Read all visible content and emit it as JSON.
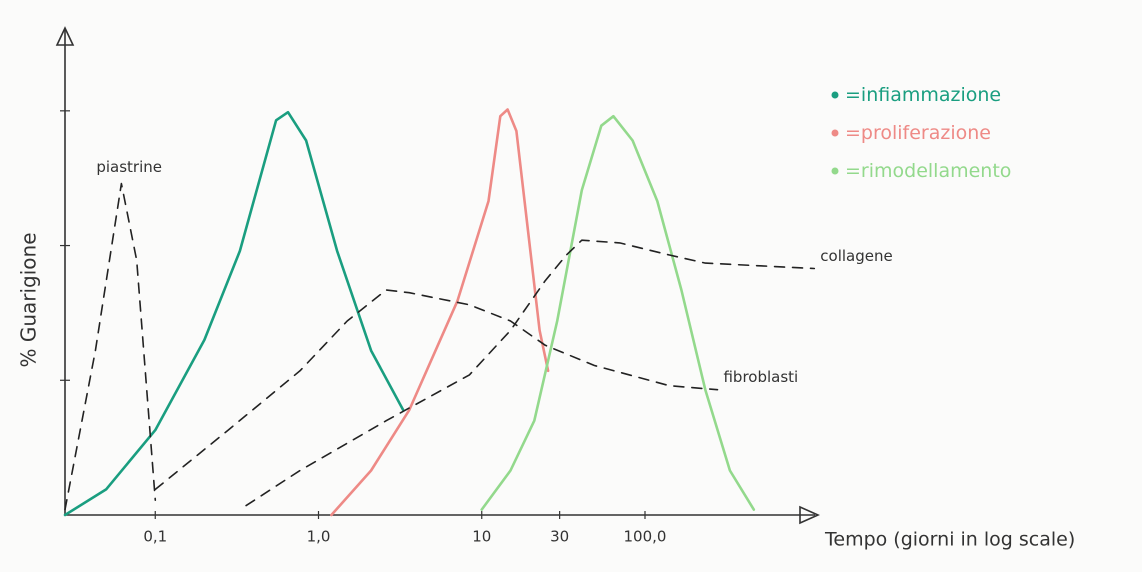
{
  "chart_data": {
    "type": "line",
    "y_label": "% Guarigione",
    "x_label": "Tempo (giorni in log scale)",
    "xscale": "log",
    "xlim": [
      0.028,
      1100
    ],
    "xticks": [
      {
        "value": 0.1,
        "label": "0,1"
      },
      {
        "value": 1,
        "label": "1,0"
      },
      10,
      30,
      {
        "value": 100,
        "label": "100,0"
      }
    ],
    "ylim": [
      0,
      3.6
    ],
    "yticks": [
      1,
      2,
      3
    ],
    "legend_separator": "=",
    "series": [
      {
        "name": "infiammazione",
        "color": "#1a9e80",
        "dashed": false,
        "x": [
          0.028,
          0.05,
          0.1,
          0.2,
          0.33,
          0.55,
          0.65,
          0.84,
          1.3,
          2.1,
          3.3
        ],
        "values": [
          0,
          0.19,
          0.63,
          1.3,
          1.96,
          2.93,
          2.99,
          2.78,
          1.96,
          1.22,
          0.78
        ]
      },
      {
        "name": "proliferazione",
        "color": "#ee8a86",
        "dashed": false,
        "x": [
          1.2,
          2.1,
          3.6,
          7.1,
          11,
          13,
          14.4,
          16.3,
          19.2,
          22.6,
          25.5
        ],
        "values": [
          0,
          0.33,
          0.78,
          1.59,
          2.33,
          2.96,
          3.01,
          2.85,
          2.11,
          1.37,
          1.07
        ]
      },
      {
        "name": "rimodellamento",
        "color": "#93d98c",
        "dashed": false,
        "x": [
          10,
          15,
          21,
          29,
          41,
          54,
          64,
          84,
          119,
          167,
          234,
          331,
          464
        ],
        "values": [
          0.04,
          0.33,
          0.7,
          1.44,
          2.41,
          2.89,
          2.96,
          2.78,
          2.33,
          1.67,
          0.93,
          0.33,
          0.04
        ]
      },
      {
        "name": "piastrine",
        "color": "#222222",
        "dashed": true,
        "x": [
          0.028,
          0.043,
          0.062,
          0.077,
          0.1
        ],
        "values": [
          0.04,
          1.22,
          2.46,
          1.89,
          0.11
        ]
      },
      {
        "name": "fibroblasti",
        "color": "#222222",
        "dashed": true,
        "x": [
          0.1,
          0.28,
          0.77,
          1.5,
          2.6,
          3.6,
          8.4,
          15,
          24.5,
          49,
          141,
          278
        ],
        "values": [
          0.19,
          0.63,
          1.07,
          1.44,
          1.67,
          1.65,
          1.56,
          1.44,
          1.26,
          1.11,
          0.96,
          0.93
        ]
      },
      {
        "name": "collagene",
        "color": "#222222",
        "dashed": true,
        "x": [
          0.36,
          0.77,
          2.6,
          8.4,
          15,
          24.5,
          33,
          41,
          70,
          141,
          234,
          1089
        ],
        "values": [
          0.07,
          0.33,
          0.7,
          1.04,
          1.37,
          1.74,
          1.93,
          2.04,
          2.02,
          1.93,
          1.87,
          1.83
        ]
      }
    ]
  }
}
